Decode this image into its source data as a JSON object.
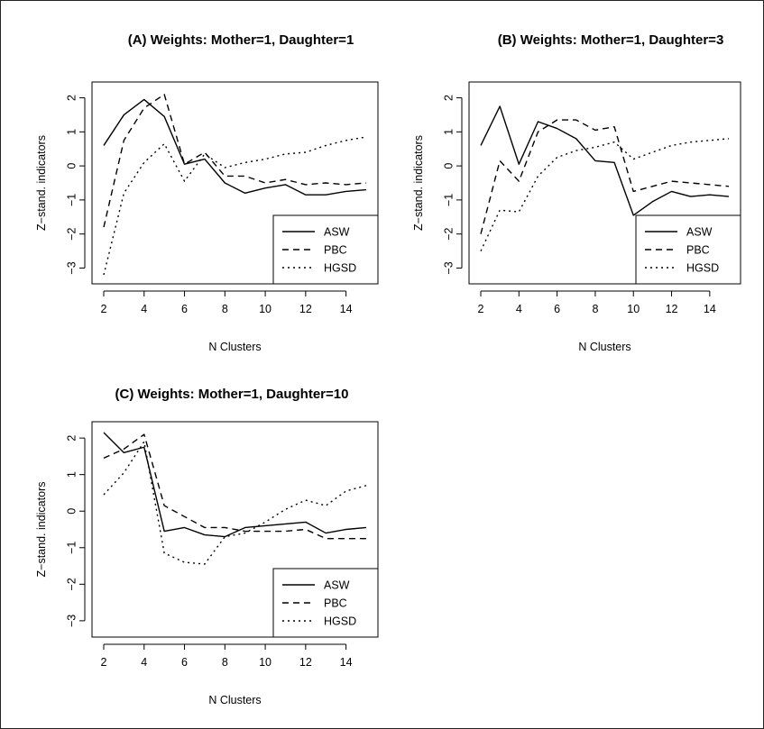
{
  "chart_data": [
    {
      "type": "line",
      "title": "(A) Weights: Mother=1, Daughter=1",
      "xlabel": "N Clusters",
      "ylabel": "Z−stand. indicators",
      "x": [
        2,
        3,
        4,
        5,
        6,
        7,
        8,
        9,
        10,
        11,
        12,
        13,
        14,
        15
      ],
      "xticks": [
        "2",
        "4",
        "6",
        "8",
        "10",
        "12",
        "14"
      ],
      "yticks": [
        "2",
        "1",
        "0",
        "−1",
        "−2",
        "−3"
      ],
      "xlim": [
        2,
        15
      ],
      "ylim": [
        -3.2,
        2.2
      ],
      "legend_position": "bottom-right",
      "series": [
        {
          "name": "ASW",
          "dash": "solid",
          "values": [
            0.6,
            1.5,
            1.95,
            1.45,
            0.05,
            0.2,
            -0.5,
            -0.8,
            -0.65,
            -0.55,
            -0.85,
            -0.85,
            -0.75,
            -0.7
          ]
        },
        {
          "name": "PBC",
          "dash": "dashed",
          "values": [
            -1.8,
            0.75,
            1.7,
            2.1,
            0.05,
            0.4,
            -0.3,
            -0.3,
            -0.5,
            -0.4,
            -0.55,
            -0.5,
            -0.55,
            -0.5
          ]
        },
        {
          "name": "HGSD",
          "dash": "dotted",
          "values": [
            -3.2,
            -0.8,
            0.1,
            0.65,
            -0.45,
            0.35,
            -0.05,
            0.1,
            0.2,
            0.35,
            0.4,
            0.6,
            0.75,
            0.85
          ]
        }
      ]
    },
    {
      "type": "line",
      "title": "(B) Weights: Mother=1, Daughter=3",
      "xlabel": "N Clusters",
      "ylabel": "Z−stand. indicators",
      "x": [
        2,
        3,
        4,
        5,
        6,
        7,
        8,
        9,
        10,
        11,
        12,
        13,
        14,
        15
      ],
      "xticks": [
        "2",
        "4",
        "6",
        "8",
        "10",
        "12",
        "14"
      ],
      "yticks": [
        "2",
        "1",
        "0",
        "−1",
        "−2",
        "−3"
      ],
      "xlim": [
        2,
        15
      ],
      "ylim": [
        -3.2,
        2.2
      ],
      "legend_position": "bottom-right",
      "series": [
        {
          "name": "ASW",
          "dash": "solid",
          "values": [
            0.6,
            1.75,
            0.05,
            1.3,
            1.1,
            0.8,
            0.15,
            0.1,
            -1.45,
            -1.05,
            -0.75,
            -0.9,
            -0.85,
            -0.9
          ]
        },
        {
          "name": "PBC",
          "dash": "dashed",
          "values": [
            -2.0,
            0.15,
            -0.45,
            1.0,
            1.35,
            1.35,
            1.05,
            1.15,
            -0.75,
            -0.6,
            -0.45,
            -0.5,
            -0.55,
            -0.6
          ]
        },
        {
          "name": "HGSD",
          "dash": "dotted",
          "values": [
            -2.5,
            -1.3,
            -1.35,
            -0.3,
            0.25,
            0.45,
            0.55,
            0.7,
            0.2,
            0.4,
            0.6,
            0.7,
            0.75,
            0.8
          ]
        }
      ]
    },
    {
      "type": "line",
      "title": "(C) Weights: Mother=1, Daughter=10",
      "xlabel": "N Clusters",
      "ylabel": "Z−stand. indicators",
      "x": [
        2,
        3,
        4,
        5,
        6,
        7,
        8,
        9,
        10,
        11,
        12,
        13,
        14,
        15
      ],
      "xticks": [
        "2",
        "4",
        "6",
        "8",
        "10",
        "12",
        "14"
      ],
      "yticks": [
        "2",
        "1",
        "0",
        "−1",
        "−2",
        "−3"
      ],
      "xlim": [
        2,
        15
      ],
      "ylim": [
        -3.2,
        2.2
      ],
      "legend_position": "bottom-right",
      "series": [
        {
          "name": "ASW",
          "dash": "solid",
          "values": [
            2.15,
            1.6,
            1.75,
            -0.55,
            -0.45,
            -0.65,
            -0.7,
            -0.45,
            -0.4,
            -0.35,
            -0.3,
            -0.6,
            -0.5,
            -0.45
          ]
        },
        {
          "name": "PBC",
          "dash": "dashed",
          "values": [
            1.45,
            1.7,
            2.1,
            0.15,
            -0.15,
            -0.45,
            -0.45,
            -0.55,
            -0.55,
            -0.55,
            -0.5,
            -0.75,
            -0.75,
            -0.75
          ]
        },
        {
          "name": "HGSD",
          "dash": "dotted",
          "values": [
            0.45,
            1.05,
            1.9,
            -1.15,
            -1.4,
            -1.45,
            -0.7,
            -0.6,
            -0.3,
            0.05,
            0.3,
            0.15,
            0.55,
            0.7
          ]
        }
      ]
    }
  ]
}
